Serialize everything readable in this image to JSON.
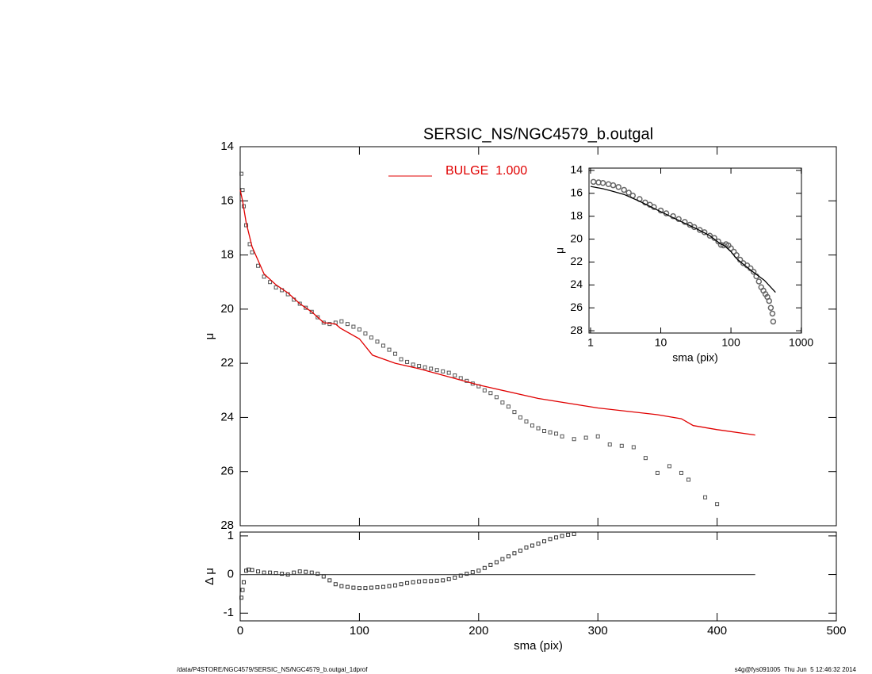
{
  "chart_data": [
    {
      "type": "profile",
      "title": "SERSIC_NS/NGC4579_b.outgal",
      "ylabel": "μ",
      "xlim": [
        0,
        500
      ],
      "ylim": [
        28,
        14
      ],
      "yticks": [
        14,
        16,
        18,
        20,
        22,
        24,
        26,
        28
      ],
      "series": [
        {
          "marker": "square",
          "color": "#555555",
          "x": [
            1,
            2,
            3,
            5,
            8,
            10,
            15,
            20,
            25,
            30,
            35,
            40,
            45,
            50,
            55,
            60,
            65,
            70,
            75,
            80,
            85,
            90,
            95,
            100,
            105,
            110,
            115,
            120,
            125,
            130,
            135,
            140,
            145,
            150,
            155,
            160,
            165,
            170,
            175,
            180,
            185,
            190,
            195,
            200,
            205,
            210,
            215,
            220,
            225,
            230,
            235,
            240,
            245,
            250,
            255,
            260,
            265,
            270,
            280,
            290,
            300,
            310,
            320,
            330,
            340,
            350,
            360,
            370,
            376,
            390,
            400
          ],
          "values": [
            15.0,
            15.6,
            16.2,
            16.9,
            17.6,
            17.9,
            18.4,
            18.8,
            19.0,
            19.2,
            19.3,
            19.45,
            19.65,
            19.8,
            19.95,
            20.1,
            20.3,
            20.5,
            20.55,
            20.5,
            20.45,
            20.55,
            20.65,
            20.75,
            20.9,
            21.05,
            21.2,
            21.35,
            21.5,
            21.65,
            21.85,
            21.95,
            22.05,
            22.1,
            22.15,
            22.2,
            22.25,
            22.3,
            22.35,
            22.45,
            22.55,
            22.65,
            22.75,
            22.85,
            23.0,
            23.1,
            23.25,
            23.45,
            23.6,
            23.8,
            24.0,
            24.15,
            24.3,
            24.4,
            24.5,
            24.55,
            24.6,
            24.7,
            24.8,
            24.75,
            24.7,
            25.0,
            25.05,
            25.1,
            25.5,
            26.05,
            25.8,
            26.05,
            26.3,
            26.95,
            27.2
          ]
        },
        {
          "name": "BULGE  1.000",
          "marker": "line",
          "color": "#e00000",
          "x": [
            0,
            2,
            5,
            10,
            20,
            30,
            40,
            50,
            60,
            70,
            80,
            84,
            100,
            111,
            130,
            150,
            200,
            250,
            300,
            350,
            370,
            380,
            400,
            432
          ],
          "values": [
            15.6,
            16.0,
            16.8,
            17.7,
            18.7,
            19.1,
            19.4,
            19.8,
            20.1,
            20.5,
            20.55,
            20.7,
            21.1,
            21.7,
            22.0,
            22.2,
            22.8,
            23.3,
            23.65,
            23.9,
            24.05,
            24.3,
            24.45,
            24.65
          ]
        }
      ]
    },
    {
      "type": "residual",
      "xlabel": "sma (pix)",
      "ylabel": "Δ μ",
      "xlim": [
        0,
        500
      ],
      "ylim": [
        -1.2,
        1.1
      ],
      "xticks": [
        0,
        100,
        200,
        300,
        400,
        500
      ],
      "yticks": [
        -1,
        0,
        1
      ],
      "series": [
        {
          "marker": "line",
          "color": "#555555",
          "x": [
            0,
            432
          ],
          "values": [
            0,
            0
          ]
        },
        {
          "marker": "square",
          "color": "#333333",
          "x": [
            1,
            2,
            3,
            5,
            7,
            10,
            15,
            20,
            25,
            30,
            35,
            40,
            45,
            50,
            55,
            60,
            65,
            70,
            75,
            80,
            85,
            90,
            95,
            100,
            105,
            110,
            115,
            120,
            125,
            130,
            135,
            140,
            145,
            150,
            155,
            160,
            165,
            170,
            175,
            180,
            185,
            190,
            195,
            200,
            205,
            210,
            215,
            220,
            225,
            230,
            235,
            240,
            245,
            250,
            255,
            260,
            265,
            270,
            275,
            280
          ],
          "values": [
            -0.6,
            -0.4,
            -0.2,
            0.1,
            0.13,
            0.12,
            0.08,
            0.05,
            0.05,
            0.04,
            0.02,
            0.0,
            0.05,
            0.08,
            0.07,
            0.05,
            0.02,
            -0.05,
            -0.15,
            -0.25,
            -0.3,
            -0.32,
            -0.34,
            -0.35,
            -0.35,
            -0.34,
            -0.33,
            -0.32,
            -0.3,
            -0.28,
            -0.25,
            -0.22,
            -0.2,
            -0.18,
            -0.17,
            -0.17,
            -0.16,
            -0.15,
            -0.12,
            -0.08,
            -0.03,
            0.02,
            0.06,
            0.1,
            0.17,
            0.25,
            0.32,
            0.4,
            0.47,
            0.55,
            0.62,
            0.7,
            0.75,
            0.8,
            0.86,
            0.92,
            0.96,
            1.0,
            1.03,
            1.05
          ]
        }
      ]
    },
    {
      "type": "inset",
      "xlabel": "sma (pix)",
      "ylabel": "μ",
      "xlog": true,
      "xlim": [
        0.95,
        1010
      ],
      "ylim": [
        28.2,
        13.8
      ],
      "xticks": [
        1,
        10,
        100,
        1000
      ],
      "yticks": [
        14,
        16,
        18,
        20,
        22,
        24,
        26,
        28
      ],
      "series": [
        {
          "marker": "circle",
          "color": "#666666",
          "x": [
            1.1,
            1.3,
            1.5,
            1.8,
            2.1,
            2.5,
            3,
            3.5,
            4,
            5,
            6,
            7,
            8,
            10,
            12,
            15,
            18,
            22,
            26,
            30,
            36,
            42,
            50,
            58,
            66,
            72,
            78,
            85,
            92,
            100,
            110,
            120,
            135,
            150,
            170,
            190,
            210,
            230,
            250,
            270,
            290,
            310,
            330,
            350,
            370,
            390,
            400
          ],
          "values": [
            15.0,
            15.05,
            15.1,
            15.2,
            15.3,
            15.45,
            15.7,
            15.95,
            16.2,
            16.5,
            16.8,
            17.0,
            17.2,
            17.5,
            17.75,
            18.0,
            18.25,
            18.5,
            18.75,
            18.95,
            19.2,
            19.4,
            19.7,
            19.9,
            20.2,
            20.5,
            20.55,
            20.45,
            20.55,
            20.8,
            21.1,
            21.4,
            21.8,
            22.1,
            22.3,
            22.55,
            22.85,
            23.25,
            23.7,
            24.2,
            24.5,
            24.8,
            25.05,
            25.4,
            26.0,
            26.5,
            27.2
          ]
        },
        {
          "marker": "line",
          "color": "#000000",
          "x": [
            1,
            1.5,
            2,
            3,
            5,
            10,
            20,
            30,
            50,
            70,
            80,
            100,
            120,
            150,
            200,
            300,
            432
          ],
          "values": [
            15.4,
            15.6,
            15.8,
            16.1,
            16.7,
            17.6,
            18.5,
            19.0,
            19.7,
            20.4,
            20.55,
            21.1,
            21.7,
            22.2,
            22.8,
            23.6,
            24.65
          ]
        }
      ]
    }
  ],
  "footer": {
    "left": "/data/P4STORE/NGC4579/SERSIC_NS/NGC4579_b.outgal_1dprof",
    "right": "s4g@fys091005  Thu Jun  5 12:46:32 2014"
  }
}
